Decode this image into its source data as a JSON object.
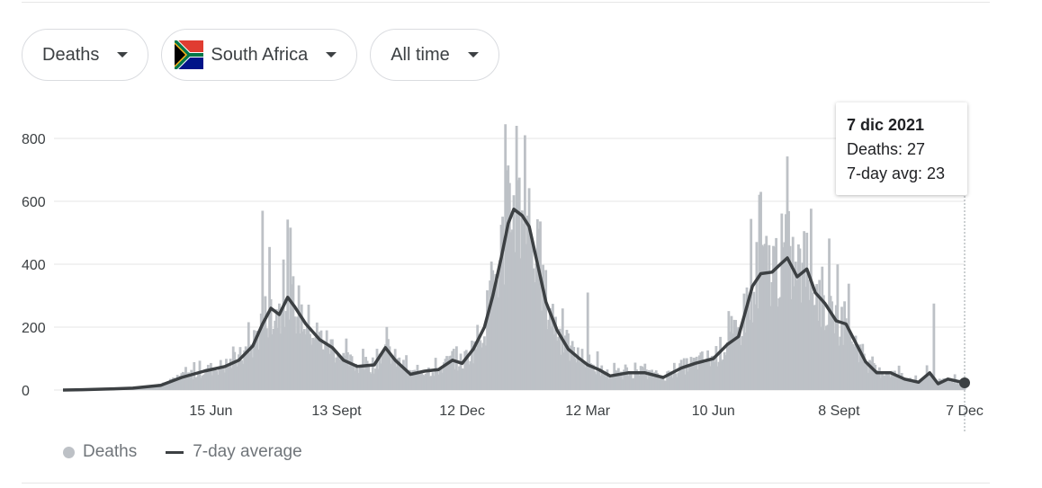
{
  "filters": {
    "metric": "Deaths",
    "country": "South Africa",
    "range": "All time"
  },
  "tooltip": {
    "date": "7 dic 2021",
    "deaths_label": "Deaths: 27",
    "avg_label": "7-day avg: 23"
  },
  "legend": {
    "bars_label": "Deaths",
    "line_label": "7-day average"
  },
  "colors": {
    "bars": "#bdc1c6",
    "line": "#3c4043",
    "grid": "#e6e6e6"
  },
  "chart_data": {
    "type": "bar",
    "title": "",
    "xlabel": "",
    "ylabel": "",
    "ylim": [
      0,
      850
    ],
    "y_ticks": [
      0,
      200,
      400,
      600,
      800
    ],
    "x_tick_labels": [
      "15 Jun",
      "13 Sept",
      "12 Dec",
      "12 Mar",
      "10 Jun",
      "8 Sept",
      "7 Dec"
    ],
    "x_tick_dates": [
      "2020-06-15",
      "2020-09-13",
      "2020-12-12",
      "2021-03-12",
      "2021-06-10",
      "2021-09-08",
      "2021-12-07"
    ],
    "grid": true,
    "legend_position": "bottom-left",
    "series": [
      {
        "name": "7-day average",
        "kind": "line",
        "points": [
          [
            "2020-03-01",
            0
          ],
          [
            "2020-03-15",
            1
          ],
          [
            "2020-04-01",
            3
          ],
          [
            "2020-04-20",
            6
          ],
          [
            "2020-05-10",
            15
          ],
          [
            "2020-05-25",
            40
          ],
          [
            "2020-06-10",
            60
          ],
          [
            "2020-06-25",
            75
          ],
          [
            "2020-07-05",
            95
          ],
          [
            "2020-07-15",
            140
          ],
          [
            "2020-07-22",
            210
          ],
          [
            "2020-07-28",
            260
          ],
          [
            "2020-08-03",
            240
          ],
          [
            "2020-08-09",
            295
          ],
          [
            "2020-08-14",
            265
          ],
          [
            "2020-08-22",
            210
          ],
          [
            "2020-09-01",
            160
          ],
          [
            "2020-09-10",
            135
          ],
          [
            "2020-09-18",
            95
          ],
          [
            "2020-09-28",
            75
          ],
          [
            "2020-10-10",
            80
          ],
          [
            "2020-10-18",
            135
          ],
          [
            "2020-10-25",
            95
          ],
          [
            "2020-11-05",
            50
          ],
          [
            "2020-11-15",
            60
          ],
          [
            "2020-11-25",
            65
          ],
          [
            "2020-12-05",
            95
          ],
          [
            "2020-12-12",
            85
          ],
          [
            "2020-12-20",
            130
          ],
          [
            "2020-12-28",
            200
          ],
          [
            "2021-01-03",
            300
          ],
          [
            "2021-01-09",
            420
          ],
          [
            "2021-01-14",
            530
          ],
          [
            "2021-01-18",
            575
          ],
          [
            "2021-01-24",
            555
          ],
          [
            "2021-01-29",
            520
          ],
          [
            "2021-02-04",
            400
          ],
          [
            "2021-02-10",
            280
          ],
          [
            "2021-02-18",
            190
          ],
          [
            "2021-02-26",
            130
          ],
          [
            "2021-03-06",
            100
          ],
          [
            "2021-03-12",
            80
          ],
          [
            "2021-03-20",
            65
          ],
          [
            "2021-03-28",
            45
          ],
          [
            "2021-04-10",
            55
          ],
          [
            "2021-04-22",
            55
          ],
          [
            "2021-05-05",
            40
          ],
          [
            "2021-05-18",
            70
          ],
          [
            "2021-05-28",
            85
          ],
          [
            "2021-06-10",
            100
          ],
          [
            "2021-06-20",
            145
          ],
          [
            "2021-06-28",
            170
          ],
          [
            "2021-07-03",
            250
          ],
          [
            "2021-07-08",
            330
          ],
          [
            "2021-07-14",
            370
          ],
          [
            "2021-07-22",
            375
          ],
          [
            "2021-07-28",
            400
          ],
          [
            "2021-08-02",
            420
          ],
          [
            "2021-08-09",
            360
          ],
          [
            "2021-08-16",
            385
          ],
          [
            "2021-08-22",
            310
          ],
          [
            "2021-08-29",
            275
          ],
          [
            "2021-09-06",
            220
          ],
          [
            "2021-09-13",
            210
          ],
          [
            "2021-09-20",
            150
          ],
          [
            "2021-09-27",
            90
          ],
          [
            "2021-10-05",
            55
          ],
          [
            "2021-10-15",
            55
          ],
          [
            "2021-10-25",
            35
          ],
          [
            "2021-11-04",
            25
          ],
          [
            "2021-11-12",
            55
          ],
          [
            "2021-11-18",
            20
          ],
          [
            "2021-11-25",
            35
          ],
          [
            "2021-12-07",
            23
          ]
        ]
      },
      {
        "name": "Deaths",
        "kind": "bar",
        "note_peaks": [
          [
            "2020-07-22",
            570
          ],
          [
            "2020-08-06",
            415
          ],
          [
            "2021-01-12",
            845
          ],
          [
            "2021-01-20",
            840
          ],
          [
            "2021-01-26",
            810
          ],
          [
            "2021-03-12",
            310
          ],
          [
            "2021-07-14",
            630
          ],
          [
            "2021-11-15",
            275
          ],
          [
            "2021-12-07",
            27
          ]
        ]
      }
    ]
  }
}
